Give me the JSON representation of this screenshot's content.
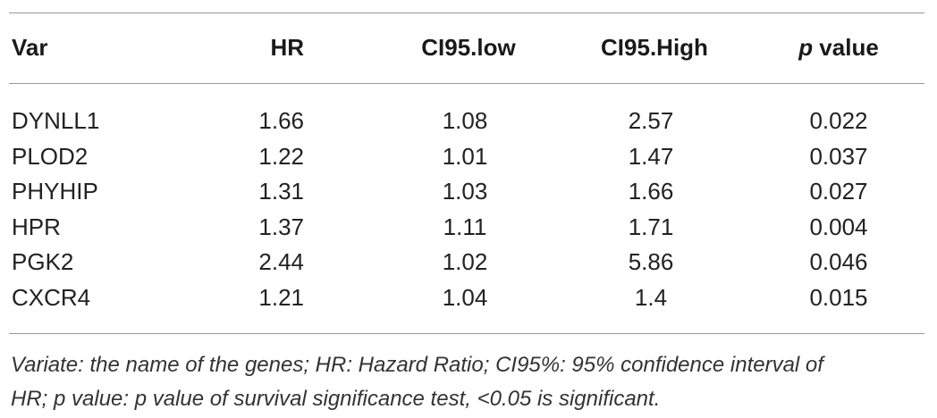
{
  "table": {
    "headers": {
      "var": "Var",
      "hr": "HR",
      "ci_low": "CI95.low",
      "ci_high": "CI95.High",
      "p_italic": "p",
      "p_rest": " value"
    },
    "rows": [
      {
        "var": "DYNLL1",
        "hr": "1.66",
        "ci_low": "1.08",
        "ci_high": "2.57",
        "p": "0.022"
      },
      {
        "var": "PLOD2",
        "hr": "1.22",
        "ci_low": "1.01",
        "ci_high": "1.47",
        "p": "0.037"
      },
      {
        "var": "PHYHIP",
        "hr": "1.31",
        "ci_low": "1.03",
        "ci_high": "1.66",
        "p": "0.027"
      },
      {
        "var": "HPR",
        "hr": "1.37",
        "ci_low": "1.11",
        "ci_high": "1.71",
        "p": "0.004"
      },
      {
        "var": "PGK2",
        "hr": "2.44",
        "ci_low": "1.02",
        "ci_high": "5.86",
        "p": "0.046"
      },
      {
        "var": "CXCR4",
        "hr": "1.21",
        "ci_low": "1.04",
        "ci_high": "1.4",
        "p": "0.015"
      }
    ],
    "footnote_line1": "Variate: the name of the genes; HR: Hazard Ratio; CI95%: 95% confidence interval of",
    "footnote_line2": "HR; p value: p value of survival significance test, <0.05 is significant."
  }
}
